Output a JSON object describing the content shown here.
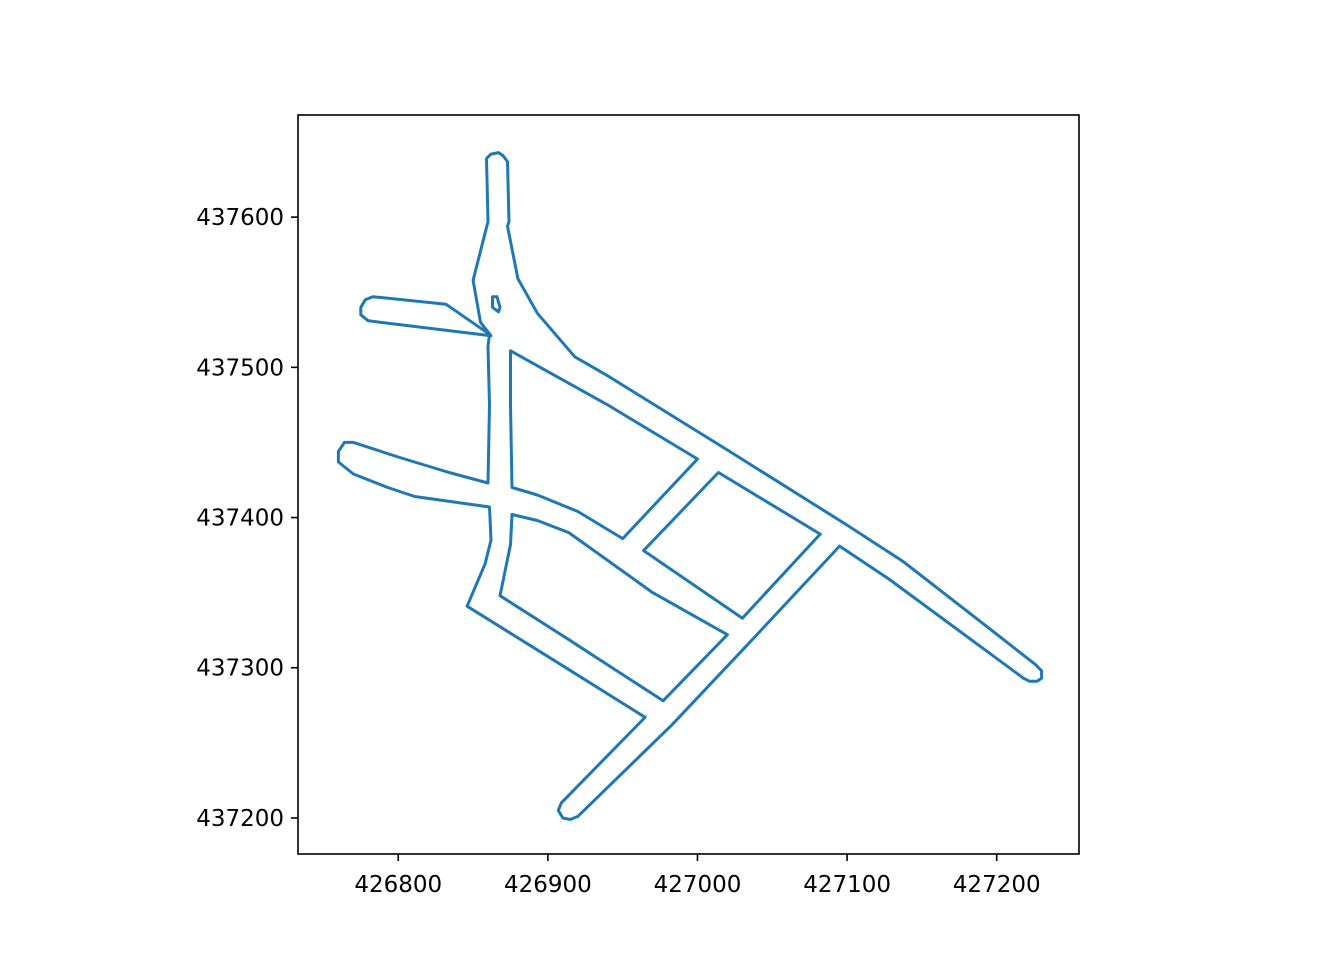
{
  "chart_data": {
    "type": "line",
    "title": "",
    "xlabel": "",
    "ylabel": "",
    "xlim": [
      426733,
      427255
    ],
    "ylim": [
      437176,
      437668
    ],
    "x_ticks": [
      426800,
      426900,
      427000,
      427100,
      427200
    ],
    "y_ticks": [
      437200,
      437300,
      437400,
      437500,
      437600
    ],
    "x_tick_labels": [
      "426800",
      "426900",
      "427000",
      "427100",
      "427200"
    ],
    "y_tick_labels": [
      "437200",
      "437300",
      "437400",
      "437500",
      "437600"
    ],
    "grid": false,
    "legend": "none",
    "line_color": "#1f77b4",
    "series": [
      {
        "points": [
          [
            426860,
            437597
          ],
          [
            426859,
            437639
          ],
          [
            426862,
            437642
          ],
          [
            426867,
            437643
          ],
          [
            426870,
            437641
          ],
          [
            426873,
            437637
          ],
          [
            426874,
            437597
          ],
          [
            426873,
            437594
          ],
          [
            426880,
            437559
          ],
          [
            426893,
            437536
          ],
          [
            426918,
            437507
          ],
          [
            426939,
            437495
          ],
          [
            426960,
            437482
          ],
          [
            427020,
            437445
          ],
          [
            427100,
            437395
          ],
          [
            427137,
            437371
          ],
          [
            427194,
            437327
          ],
          [
            427226,
            437302
          ],
          [
            427230,
            437298
          ],
          [
            427230,
            437293
          ],
          [
            427227,
            437291
          ],
          [
            427222,
            437291
          ],
          [
            427218,
            437293
          ],
          [
            427128,
            437359
          ],
          [
            427095,
            437381
          ],
          [
            427036,
            437318
          ],
          [
            426983,
            437262
          ],
          [
            426920,
            437201
          ],
          [
            426915,
            437199
          ],
          [
            426910,
            437200
          ],
          [
            426907,
            437205
          ],
          [
            426909,
            437210
          ],
          [
            426965,
            437267
          ],
          [
            426912,
            437300
          ],
          [
            426846,
            437341
          ],
          [
            426858,
            437369
          ],
          [
            426862,
            437385
          ],
          [
            426861,
            437407
          ],
          [
            426811,
            437414
          ],
          [
            426793,
            437420
          ],
          [
            426770,
            437429
          ],
          [
            426760,
            437437
          ],
          [
            426760,
            437444
          ],
          [
            426764,
            437450
          ],
          [
            426770,
            437450
          ],
          [
            426801,
            437440
          ],
          [
            426834,
            437430
          ],
          [
            426860,
            437423
          ],
          [
            426861,
            437475
          ],
          [
            426860,
            437514
          ],
          [
            426861,
            437522
          ],
          [
            426832,
            437542
          ],
          [
            426783,
            437547
          ],
          [
            426778,
            437545
          ],
          [
            426775,
            437540
          ],
          [
            426775,
            437535
          ],
          [
            426780,
            437531
          ],
          [
            426862,
            437521
          ],
          [
            426855,
            437530
          ],
          [
            426850,
            437558
          ],
          [
            426860,
            437597
          ]
        ]
      },
      {
        "points": [
          [
            426875,
            437511
          ],
          [
            426875,
            437475
          ],
          [
            426876,
            437420
          ],
          [
            426893,
            437415
          ],
          [
            426920,
            437404
          ],
          [
            426950,
            437386
          ],
          [
            427000,
            437439
          ],
          [
            426940,
            437475
          ],
          [
            426875,
            437511
          ]
        ]
      },
      {
        "points": [
          [
            426876,
            437402
          ],
          [
            426875,
            437382
          ],
          [
            426868,
            437348
          ],
          [
            426912,
            437320
          ],
          [
            426977,
            437278
          ],
          [
            427020,
            437322
          ],
          [
            426970,
            437350
          ],
          [
            426914,
            437390
          ],
          [
            426893,
            437398
          ],
          [
            426876,
            437402
          ]
        ]
      },
      {
        "points": [
          [
            426964,
            437378
          ],
          [
            427014,
            437430
          ],
          [
            427082,
            437389
          ],
          [
            427030,
            437333
          ],
          [
            426964,
            437378
          ]
        ]
      },
      {
        "points": [
          [
            426863,
            437547
          ],
          [
            426866,
            437547
          ],
          [
            426868,
            437540
          ],
          [
            426867,
            437537
          ],
          [
            426863,
            437540
          ],
          [
            426863,
            437547
          ]
        ]
      }
    ]
  }
}
